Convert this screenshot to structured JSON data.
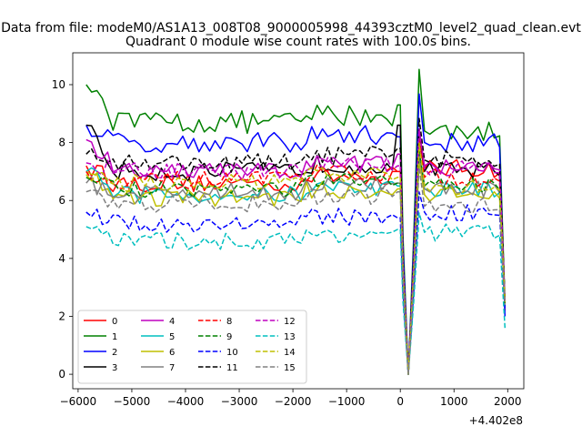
{
  "suptitle": "Data from file: modeM0/AS1A13_008T08_9000005998_44393cztM0_level2_quad_clean.evt",
  "chart_data": {
    "type": "line",
    "title": "Quadrant 0 module wise count rates with 100.0s bins.",
    "xlabel": "",
    "ylabel": "",
    "x_offset_label": "+4.402e8",
    "xlim": [
      -6100,
      2300
    ],
    "ylim": [
      -0.5,
      11.1
    ],
    "xticks": [
      -6000,
      -5000,
      -4000,
      -3000,
      -2000,
      -1000,
      0,
      1000,
      2000
    ],
    "xtick_labels": [
      "−6000",
      "−5000",
      "−4000",
      "−3000",
      "−2000",
      "−1000",
      "0",
      "1000",
      "2000"
    ],
    "yticks": [
      0,
      2,
      4,
      6,
      8,
      10
    ],
    "ytick_labels": [
      "0",
      "2",
      "4",
      "6",
      "8",
      "10"
    ],
    "grid": false,
    "legend_position": "lower-left",
    "legend_columns": 4,
    "gap_segment": {
      "x": [
        0,
        50,
        150,
        250,
        350,
        450
      ],
      "scale": [
        1.0,
        0.55,
        0.0,
        0.55,
        1.21,
        1.08
      ]
    },
    "series": [
      {
        "name": "0",
        "color": "#ff0000",
        "dash": "solid",
        "level": 6.6,
        "start": 7.2,
        "end": 7.0,
        "post": 7.1,
        "final": 2.2,
        "amp": 0.32
      },
      {
        "name": "1",
        "color": "#008000",
        "dash": "solid",
        "level": 8.7,
        "start": 10.0,
        "end": 9.3,
        "post": 8.4,
        "final": 2.4,
        "amp": 0.4
      },
      {
        "name": "2",
        "color": "#0000ff",
        "dash": "solid",
        "level": 8.0,
        "start": 8.6,
        "end": 8.2,
        "post": 8.0,
        "final": 2.0,
        "amp": 0.35
      },
      {
        "name": "3",
        "color": "#000000",
        "dash": "solid",
        "level": 7.0,
        "start": 8.6,
        "end": 8.6,
        "post": 7.0,
        "final": 2.3,
        "amp": 0.33
      },
      {
        "name": "4",
        "color": "#bf00bf",
        "dash": "solid",
        "level": 7.0,
        "start": 8.1,
        "end": 7.6,
        "post": 7.2,
        "final": 2.4,
        "amp": 0.33
      },
      {
        "name": "5",
        "color": "#00bfbf",
        "dash": "solid",
        "level": 6.2,
        "start": 7.0,
        "end": 6.5,
        "post": 6.4,
        "final": 2.5,
        "amp": 0.3
      },
      {
        "name": "6",
        "color": "#bfbf00",
        "dash": "solid",
        "level": 6.1,
        "start": 7.0,
        "end": 6.4,
        "post": 6.2,
        "final": 2.6,
        "amp": 0.3
      },
      {
        "name": "7",
        "color": "#808080",
        "dash": "solid",
        "level": 6.3,
        "start": 6.6,
        "end": 6.6,
        "post": 6.4,
        "final": 2.5,
        "amp": 0.3
      },
      {
        "name": "8",
        "color": "#ff0000",
        "dash": "dashed",
        "level": 6.7,
        "start": 7.0,
        "end": 7.0,
        "post": 6.8,
        "final": 2.4,
        "amp": 0.3
      },
      {
        "name": "9",
        "color": "#008000",
        "dash": "dashed",
        "level": 6.4,
        "start": 6.8,
        "end": 6.6,
        "post": 6.5,
        "final": 2.4,
        "amp": 0.3
      },
      {
        "name": "10",
        "color": "#0000ff",
        "dash": "dashed",
        "level": 5.2,
        "start": 5.6,
        "end": 5.4,
        "post": 5.6,
        "final": 2.3,
        "amp": 0.3
      },
      {
        "name": "11",
        "color": "#000000",
        "dash": "dashed",
        "level": 7.3,
        "start": 7.6,
        "end": 7.8,
        "post": 7.4,
        "final": 2.6,
        "amp": 0.33
      },
      {
        "name": "12",
        "color": "#bf00bf",
        "dash": "dashed",
        "level": 7.0,
        "start": 7.3,
        "end": 7.2,
        "post": 7.1,
        "final": 2.5,
        "amp": 0.3
      },
      {
        "name": "13",
        "color": "#00bfbf",
        "dash": "dashed",
        "level": 4.6,
        "start": 5.1,
        "end": 5.0,
        "post": 4.9,
        "final": 1.6,
        "amp": 0.3
      },
      {
        "name": "14",
        "color": "#bfbf00",
        "dash": "dashed",
        "level": 6.6,
        "start": 6.9,
        "end": 6.8,
        "post": 6.5,
        "final": 2.5,
        "amp": 0.3
      },
      {
        "name": "15",
        "color": "#808080",
        "dash": "dashed",
        "level": 5.9,
        "start": 6.3,
        "end": 6.3,
        "post": 5.8,
        "final": 2.4,
        "amp": 0.3
      }
    ]
  }
}
